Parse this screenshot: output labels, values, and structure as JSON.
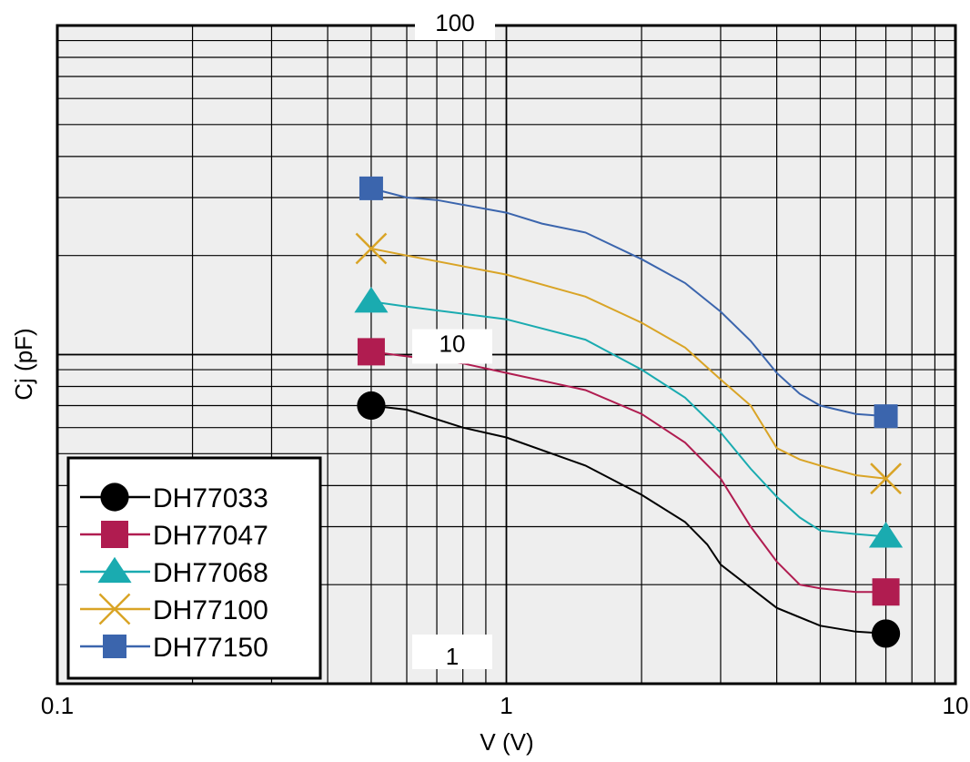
{
  "chart_data": {
    "type": "line",
    "xlabel": "V (V)",
    "ylabel": "Cj (pF)",
    "x_scale": "log",
    "y_scale": "log",
    "xlim": [
      0.1,
      10
    ],
    "ylim": [
      1,
      100
    ],
    "grid": true,
    "legend_position": "bottom-left",
    "x_ticks": [
      "0.1",
      "1",
      "10"
    ],
    "y_ticks": [
      "100",
      "10",
      "1"
    ],
    "background_color": "#eeeeee",
    "series": [
      {
        "name": "DH77033",
        "color": "#000000",
        "marker": "circle",
        "x": [
          0.5,
          0.6,
          0.8,
          1.0,
          1.5,
          2.0,
          2.5,
          2.8,
          3.0,
          4.0,
          5.0,
          6.0,
          7.0
        ],
        "y": [
          7.0,
          6.8,
          6.0,
          5.6,
          4.6,
          3.75,
          3.1,
          2.65,
          2.3,
          1.7,
          1.5,
          1.44,
          1.42
        ]
      },
      {
        "name": "DH77047",
        "color": "#b01c50",
        "marker": "square",
        "x": [
          0.5,
          0.8,
          1.0,
          1.5,
          2.0,
          2.5,
          3.0,
          3.5,
          4.0,
          4.5,
          5.0,
          6.0,
          7.0
        ],
        "y": [
          10.2,
          9.4,
          8.8,
          7.8,
          6.6,
          5.4,
          4.2,
          3.0,
          2.35,
          2.0,
          1.95,
          1.9,
          1.9
        ]
      },
      {
        "name": "DH77068",
        "color": "#1aabb0",
        "marker": "triangle",
        "x": [
          0.5,
          0.6,
          1.0,
          1.5,
          2.0,
          2.5,
          3.0,
          3.5,
          4.0,
          4.5,
          5.0,
          6.0,
          7.0
        ],
        "y": [
          14.5,
          14.0,
          12.8,
          11.1,
          9.0,
          7.4,
          5.8,
          4.5,
          3.7,
          3.2,
          2.92,
          2.85,
          2.8
        ]
      },
      {
        "name": "DH77100",
        "color": "#d9a426",
        "marker": "x",
        "x": [
          0.5,
          0.6,
          1.0,
          1.5,
          2.0,
          2.5,
          3.0,
          3.5,
          4.0,
          4.5,
          5.0,
          6.0,
          7.0
        ],
        "y": [
          21.0,
          20.0,
          17.5,
          15.0,
          12.5,
          10.5,
          8.4,
          7.0,
          5.2,
          4.8,
          4.6,
          4.3,
          4.2
        ]
      },
      {
        "name": "DH77150",
        "color": "#3b65ad",
        "marker": "square",
        "x": [
          0.5,
          0.6,
          0.7,
          1.0,
          1.2,
          1.5,
          2.0,
          2.5,
          3.0,
          3.5,
          4.0,
          4.5,
          5.0,
          6.0,
          7.0
        ],
        "y": [
          32.0,
          30.0,
          29.5,
          27.0,
          25.0,
          23.5,
          19.5,
          16.5,
          13.5,
          11.0,
          8.8,
          7.6,
          7.0,
          6.6,
          6.5
        ]
      }
    ]
  }
}
